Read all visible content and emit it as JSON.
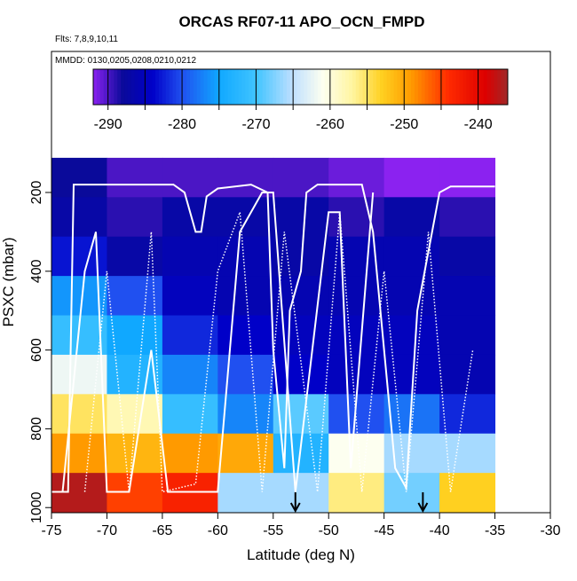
{
  "chart_data": {
    "type": "heatmap",
    "title": "ORCAS RF07-11 APO_OCN_FMPD",
    "subtitle": "Flts: 7,8,9,10,11",
    "annotation": "MMDD: 0130,0205,0208,0210,0212",
    "xlabel": "Latitude (deg N)",
    "ylabel": "PSXC (mbar)",
    "xlim": [
      -75,
      -30
    ],
    "ylim": [
      1013,
      -158
    ],
    "xticks": [
      -75,
      -70,
      -65,
      -60,
      -55,
      -50,
      -45,
      -40,
      -35,
      -30
    ],
    "yticks": [
      200,
      400,
      600,
      800,
      1000
    ],
    "xbins": [
      -75,
      -70,
      -65,
      -60,
      -55,
      -50,
      -45,
      -40,
      -35
    ],
    "ybins": [
      112,
      212,
      312,
      412,
      512,
      612,
      712,
      812,
      912,
      1012
    ],
    "z": [
      [
        -288,
        -290,
        -290,
        -290,
        -290,
        -291,
        -292,
        -292
      ],
      [
        -287,
        -289,
        -287,
        -287,
        -287,
        -289,
        -287,
        -289
      ],
      [
        -283,
        -287,
        -286,
        -286,
        -287,
        -286,
        -286,
        -287
      ],
      [
        -276,
        -280,
        -285,
        -286,
        -286,
        -286,
        -286,
        -286
      ],
      [
        -271,
        -275,
        -282,
        -284,
        -285,
        -285,
        -285,
        -286
      ],
      [
        -262,
        -273,
        -277,
        -280,
        -284,
        -285,
        -285,
        -286
      ],
      [
        -255,
        -258,
        -271,
        -277,
        -269,
        -280,
        -278,
        -282
      ],
      [
        -249,
        -251,
        -249,
        -250,
        -273,
        -261,
        -266,
        -266
      ],
      [
        -237,
        -245,
        -243,
        -266,
        -266,
        -256,
        -268,
        -253
      ]
    ],
    "zlim": [
      -292,
      -236
    ],
    "colorbar_ticks": [
      -290,
      -280,
      -270,
      -260,
      -250,
      -240
    ],
    "colormap": [
      {
        "value": -292,
        "color": "#8b22f0"
      },
      {
        "value": -288,
        "color": "#0a0a9a"
      },
      {
        "value": -284,
        "color": "#0000c8"
      },
      {
        "value": -280,
        "color": "#2050f0"
      },
      {
        "value": -275,
        "color": "#10a8ff"
      },
      {
        "value": -270,
        "color": "#40c4ff"
      },
      {
        "value": -265,
        "color": "#c0e0ff"
      },
      {
        "value": -261,
        "color": "#fdfff0"
      },
      {
        "value": -257,
        "color": "#fff5a0"
      },
      {
        "value": -253,
        "color": "#ffd020"
      },
      {
        "value": -249,
        "color": "#ff9a00"
      },
      {
        "value": -244,
        "color": "#ff2a00"
      },
      {
        "value": -239,
        "color": "#dd0000"
      },
      {
        "value": -236,
        "color": "#a02828"
      }
    ],
    "tracks": [
      {
        "style": "solid",
        "x": [
          -75,
          -73.5,
          -73,
          -64,
          -63,
          -62,
          -61.5,
          -61,
          -60,
          -57,
          -55.5,
          -55,
          -54,
          -53.5,
          -52.5,
          -52,
          -51,
          -47,
          -46,
          -45,
          -44,
          -43,
          -42,
          -40,
          -39,
          -35
        ],
        "y": [
          960,
          960,
          180,
          180,
          200,
          300,
          300,
          210,
          190,
          180,
          200,
          600,
          900,
          500,
          400,
          200,
          180,
          180,
          300,
          600,
          900,
          950,
          500,
          200,
          185,
          185
        ]
      },
      {
        "style": "dotted",
        "x": [
          -72,
          -70,
          -68,
          -66,
          -65,
          -62,
          -60,
          -58,
          -56,
          -54,
          -51,
          -49,
          -47,
          -45,
          -43,
          -41,
          -39,
          -37
        ],
        "y": [
          960,
          400,
          960,
          300,
          960,
          940,
          400,
          250,
          960,
          300,
          960,
          250,
          960,
          400,
          960,
          300,
          960,
          600
        ]
      },
      {
        "style": "solid",
        "x": [
          -74,
          -72,
          -71,
          -70,
          -68,
          -66,
          -64.5,
          -63,
          -60,
          -58,
          -56,
          -55,
          -53,
          -50,
          -49,
          -48,
          -46
        ],
        "y": [
          960,
          400,
          300,
          960,
          960,
          600,
          960,
          960,
          960,
          300,
          200,
          200,
          960,
          250,
          250,
          900,
          200
        ]
      }
    ],
    "arrows_x": [
      -53,
      -41.5
    ],
    "track_color": "#ffffff"
  }
}
